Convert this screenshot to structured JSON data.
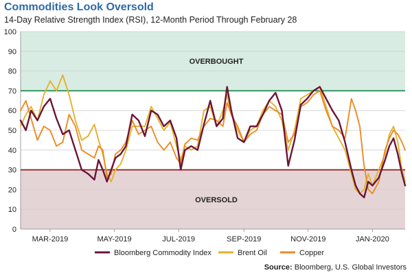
{
  "header": {
    "title": "Commodities Look Oversold",
    "subtitle": "14-Day Relative Strength Index (RSI), 12-Month Period Through February 28"
  },
  "source": {
    "label": "Source:",
    "text": "Bloomberg, U.S. Global Investors"
  },
  "colors": {
    "overbought_fill": "#d8ece3",
    "oversold_fill": "#e4d4d6",
    "overbought_line": "#1b8c4a",
    "oversold_line": "#8e1c1c",
    "bcom": "#6b1437",
    "brent": "#e3b22a",
    "copper": "#ec8a24",
    "title": "#2e6aa6"
  },
  "chart_data": {
    "type": "line",
    "title": "Commodities Look Oversold",
    "subtitle": "14-Day Relative Strength Index (RSI), 12-Month Period Through February 28",
    "ylim": [
      0,
      100
    ],
    "yticks": [
      0,
      10,
      20,
      30,
      40,
      50,
      60,
      70,
      80,
      90,
      100
    ],
    "xlim": [
      0,
      365
    ],
    "xticks": [
      {
        "label": "MAR-2019",
        "x": 28
      },
      {
        "label": "MAY-2019",
        "x": 89
      },
      {
        "label": "JUL-2019",
        "x": 150
      },
      {
        "label": "SEP-2019",
        "x": 212
      },
      {
        "label": "NOV-2019",
        "x": 273
      },
      {
        "label": "JAN-2020",
        "x": 334
      }
    ],
    "grid": true,
    "zones": [
      {
        "label": "OVERBOUGHT",
        "from": 70,
        "to": 100
      },
      {
        "label": "OVERSOLD",
        "from": 0,
        "to": 30
      }
    ],
    "legend_position": "bottom",
    "series": [
      {
        "name": "Bloomberg Commodity Index",
        "x": [
          0,
          5,
          10,
          16,
          22,
          28,
          34,
          40,
          46,
          52,
          58,
          64,
          70,
          74,
          78,
          82,
          86,
          90,
          95,
          100,
          106,
          112,
          118,
          124,
          130,
          136,
          142,
          148,
          152,
          156,
          162,
          168,
          174,
          180,
          186,
          192,
          196,
          200,
          206,
          212,
          218,
          224,
          230,
          236,
          242,
          248,
          254,
          260,
          266,
          272,
          278,
          284,
          290,
          296,
          302,
          308,
          314,
          318,
          322,
          326,
          330,
          334,
          340,
          346,
          350,
          354,
          358,
          362,
          365
        ],
        "values": [
          55,
          50,
          60,
          55,
          62,
          66,
          56,
          48,
          50,
          40,
          30,
          28,
          25,
          35,
          30,
          24,
          30,
          36,
          38,
          42,
          58,
          55,
          47,
          60,
          58,
          52,
          55,
          46,
          30,
          40,
          42,
          40,
          53,
          65,
          52,
          56,
          72,
          60,
          46,
          44,
          52,
          52,
          58,
          65,
          69,
          60,
          32,
          45,
          63,
          66,
          70,
          72,
          66,
          60,
          55,
          44,
          30,
          22,
          18,
          16,
          24,
          22,
          26,
          35,
          42,
          46,
          38,
          28,
          22
        ]
      },
      {
        "name": "Brent Oil",
        "x": [
          0,
          5,
          10,
          16,
          22,
          28,
          34,
          40,
          46,
          52,
          58,
          64,
          70,
          74,
          78,
          82,
          86,
          90,
          95,
          100,
          106,
          112,
          118,
          124,
          130,
          136,
          142,
          148,
          152,
          156,
          162,
          168,
          174,
          180,
          186,
          192,
          196,
          200,
          206,
          212,
          218,
          224,
          230,
          236,
          242,
          248,
          254,
          260,
          266,
          272,
          278,
          284,
          290,
          296,
          302,
          308,
          314,
          318,
          322,
          326,
          330,
          334,
          340,
          346,
          350,
          354,
          358,
          362,
          365
        ],
        "values": [
          52,
          58,
          62,
          55,
          68,
          75,
          70,
          78,
          68,
          55,
          45,
          47,
          53,
          45,
          38,
          28,
          24,
          30,
          33,
          40,
          52,
          52,
          52,
          62,
          56,
          50,
          54,
          42,
          35,
          42,
          40,
          42,
          60,
          62,
          52,
          60,
          68,
          58,
          50,
          44,
          50,
          52,
          60,
          65,
          62,
          55,
          40,
          50,
          66,
          68,
          70,
          72,
          62,
          52,
          46,
          40,
          28,
          20,
          18,
          20,
          28,
          22,
          30,
          38,
          48,
          52,
          44,
          30,
          24
        ]
      },
      {
        "name": "Copper",
        "x": [
          0,
          5,
          10,
          16,
          22,
          28,
          34,
          40,
          46,
          52,
          58,
          64,
          70,
          74,
          78,
          82,
          86,
          90,
          95,
          100,
          106,
          112,
          118,
          124,
          130,
          136,
          142,
          148,
          152,
          156,
          162,
          168,
          174,
          180,
          186,
          192,
          196,
          200,
          206,
          212,
          218,
          224,
          230,
          236,
          242,
          248,
          254,
          260,
          266,
          272,
          278,
          284,
          290,
          296,
          302,
          308,
          314,
          318,
          322,
          326,
          330,
          334,
          340,
          346,
          350,
          354,
          358,
          362,
          365
        ],
        "values": [
          60,
          65,
          56,
          45,
          52,
          50,
          42,
          44,
          58,
          52,
          40,
          38,
          36,
          42,
          40,
          26,
          28,
          38,
          40,
          44,
          55,
          48,
          50,
          52,
          44,
          40,
          44,
          36,
          33,
          43,
          46,
          45,
          52,
          56,
          55,
          52,
          64,
          58,
          52,
          44,
          48,
          50,
          58,
          62,
          60,
          58,
          44,
          48,
          62,
          64,
          68,
          70,
          60,
          52,
          50,
          46,
          66,
          60,
          52,
          32,
          20,
          18,
          24,
          40,
          46,
          50,
          48,
          44,
          40
        ]
      }
    ]
  }
}
